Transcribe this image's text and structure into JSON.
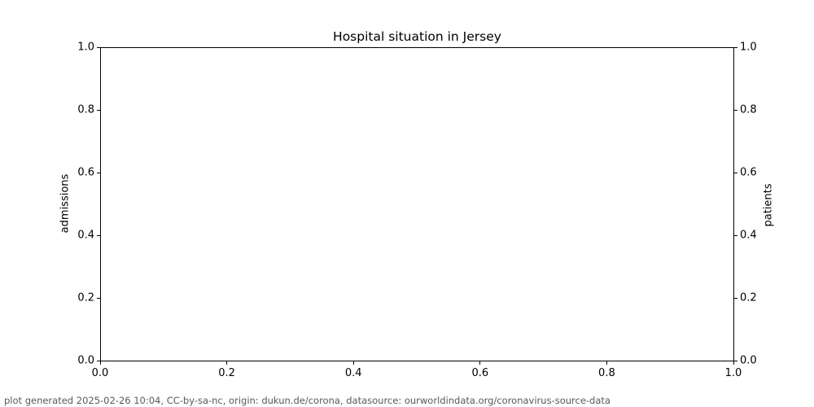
{
  "chart_data": {
    "type": "line",
    "title": "Hospital situation in Jersey",
    "xlabel": "",
    "ylabel_left": "admissions",
    "ylabel_right": "patients",
    "xlim": [
      0.0,
      1.0
    ],
    "ylim_left": [
      0.0,
      1.0
    ],
    "ylim_right": [
      0.0,
      1.0
    ],
    "x_ticks": [
      "0.0",
      "0.2",
      "0.4",
      "0.6",
      "0.8",
      "1.0"
    ],
    "y_ticks_left": [
      "0.0",
      "0.2",
      "0.4",
      "0.6",
      "0.8",
      "1.0"
    ],
    "y_ticks_right": [
      "0.0",
      "0.2",
      "0.4",
      "0.6",
      "0.8",
      "1.0"
    ],
    "series": [],
    "grid": false,
    "legend": "none",
    "note": "axes are empty - no data plotted"
  },
  "footer": {
    "text": "plot generated 2025-02-26 10:04, CC-by-sa-nc, origin: dukun.de/corona, datasource: ourworldindata.org/coronavirus-source-data"
  },
  "colors": {
    "spine": "#000000",
    "text": "#000000",
    "footer_text": "#595959",
    "background": "#ffffff"
  }
}
